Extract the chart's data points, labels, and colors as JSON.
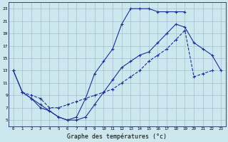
{
  "xlabel": "Graphe des températures (°c)",
  "xlim": [
    -0.5,
    23.5
  ],
  "ylim": [
    4,
    24
  ],
  "xticks": [
    0,
    1,
    2,
    3,
    4,
    5,
    6,
    7,
    8,
    9,
    10,
    11,
    12,
    13,
    14,
    15,
    16,
    17,
    18,
    19,
    20,
    21,
    22,
    23
  ],
  "yticks": [
    5,
    7,
    9,
    11,
    13,
    15,
    17,
    19,
    21,
    23
  ],
  "background_color": "#cce8ee",
  "grid_color": "#aabbd0",
  "line_color": "#1a2f99",
  "line1_x": [
    0,
    1,
    2,
    3,
    4,
    5,
    6,
    7,
    8,
    9,
    10,
    11,
    12,
    13,
    14,
    15,
    16,
    17,
    18,
    19,
    20,
    21,
    22,
    23
  ],
  "line1_y": [
    13,
    9.5,
    8.5,
    7.5,
    6.5,
    5.5,
    5.0,
    5.5,
    8.5,
    12.5,
    14.5,
    16.5,
    20.5,
    23.0,
    23.0,
    23.0,
    22.5,
    22.5,
    22.5,
    22.5,
    null,
    null,
    null,
    null
  ],
  "line2_x": [
    0,
    1,
    2,
    3,
    4,
    5,
    6,
    7,
    8,
    9,
    10,
    11,
    12,
    13,
    14,
    15,
    16,
    17,
    18,
    19,
    20,
    21,
    22,
    23
  ],
  "line2_y": [
    13,
    9.5,
    8.5,
    7.0,
    6.5,
    5.5,
    5.0,
    5.0,
    5.5,
    7.5,
    9.5,
    11.5,
    13.5,
    14.5,
    15.5,
    16.0,
    17.5,
    19.0,
    20.5,
    20.0,
    17.5,
    16.5,
    15.5,
    13.0
  ],
  "line3_x": [
    0,
    1,
    2,
    3,
    4,
    5,
    6,
    7,
    8,
    9,
    10,
    11,
    12,
    13,
    14,
    15,
    16,
    17,
    18,
    19,
    20,
    21,
    22,
    23
  ],
  "line3_y": [
    null,
    9.5,
    9.0,
    8.5,
    7.0,
    7.0,
    7.5,
    8.0,
    8.5,
    9.0,
    9.5,
    10.0,
    11.0,
    12.0,
    13.0,
    14.5,
    15.5,
    16.5,
    18.0,
    19.5,
    12.0,
    12.5,
    13.0,
    null
  ]
}
